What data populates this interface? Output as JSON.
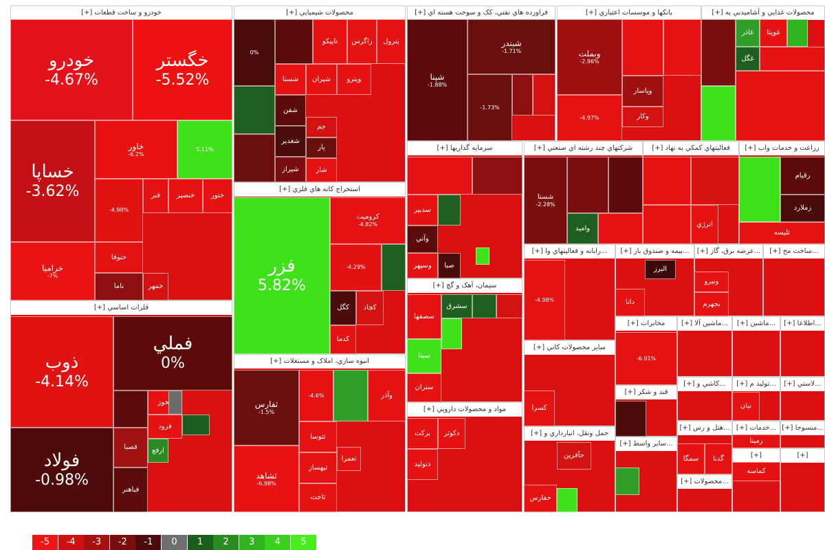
{
  "chart_data": {
    "type": "treemap",
    "sectors": [
      {
        "title": "خودرو و ساخت قطعات [+]",
        "tiles": [
          {
            "label": "خودرو",
            "value": -4.67,
            "value_label": "-4.67%",
            "color": "#e4121a"
          },
          {
            "label": "خگستر",
            "value": -5.52,
            "value_label": "-5.52%",
            "color": "#ee1111"
          },
          {
            "label": "خساپا",
            "value": -3.62,
            "value_label": "-3.62%",
            "color": "#c40f14"
          },
          {
            "label": "خاور",
            "value": -6.2,
            "value_label": "-6.2%",
            "color": "#e81212"
          },
          {
            "label": null,
            "value": 5.11,
            "value_label": "5.11%",
            "color": "#3fe21a"
          },
          {
            "label": null,
            "value": -4.98,
            "value_label": "-4.98%",
            "color": "#e01212"
          },
          {
            "label": "فنر",
            "value": -5,
            "color": "#e41212"
          },
          {
            "label": "خنصير",
            "value": -5,
            "color": "#e41212"
          },
          {
            "label": "ختور",
            "value": -5,
            "color": "#e41212"
          },
          {
            "label": "خراميا",
            "value": -7,
            "value_label": "-7%",
            "color": "#ea1212"
          },
          {
            "label": "خنوفا",
            "value": -5,
            "color": "#e41212"
          },
          {
            "label": "ناما",
            "value": -2,
            "color": "#8d0f0f"
          },
          {
            "label": "خمهر",
            "value": -4,
            "color": "#d41212"
          }
        ]
      },
      {
        "title": "فلزات اساسي [+]",
        "tiles": [
          {
            "label": "ذوب",
            "value": -4.14,
            "value_label": "-4.14%",
            "color": "#e01212"
          },
          {
            "label": "فملي",
            "value": 0,
            "value_label": "0%",
            "color": "#5c0b0b"
          },
          {
            "label": "فولاد",
            "value": -0.98,
            "value_label": "-0.98%",
            "color": "#4f0a0a"
          },
          {
            "label": null,
            "value": -1,
            "color": "#5c0b0b"
          },
          {
            "label": "فصبا",
            "value": -3,
            "color": "#a11212"
          },
          {
            "label": "فباهنر",
            "value": -1,
            "color": "#5c0b0b"
          },
          {
            "label": "فخوز",
            "value": -5,
            "color": "#e41212"
          },
          {
            "label": "فرود",
            "value": -5,
            "color": "#e41212"
          },
          {
            "label": "ارفع",
            "value": 2,
            "color": "#2b8a23"
          },
          {
            "label": null,
            "value": 0,
            "color": "#6b6b6b"
          },
          {
            "label": null,
            "value": 1,
            "color": "#1d5c1d"
          }
        ]
      },
      {
        "title": "محصولات شيميايي [+]",
        "tiles": [
          {
            "label": null,
            "value": 0,
            "value_label": "0%",
            "color": "#4a0b0b"
          },
          {
            "label": null,
            "value": -1,
            "color": "#5c0b0b"
          },
          {
            "label": "تاپيکو",
            "value": -5,
            "color": "#e41212"
          },
          {
            "label": "زاگرس",
            "value": -5,
            "color": "#e41212"
          },
          {
            "label": "پترول",
            "value": -5,
            "color": "#e41212"
          },
          {
            "label": null,
            "value": 1,
            "color": "#1f5e1f"
          },
          {
            "label": null,
            "value": -1.5,
            "color": "#6b0e0e"
          },
          {
            "label": "شسنا",
            "value": -5,
            "color": "#e41212"
          },
          {
            "label": "شيران",
            "value": -5,
            "color": "#e41212"
          },
          {
            "label": "وپترو",
            "value": -5,
            "color": "#e41212"
          },
          {
            "label": "شفن",
            "value": -1,
            "color": "#5c0b0b"
          },
          {
            "label": "شغدير",
            "value": -1,
            "color": "#4a0b0b"
          },
          {
            "label": "شيراز",
            "value": -2,
            "color": "#7a0e0e"
          },
          {
            "label": "جم",
            "value": -4,
            "color": "#d41212"
          },
          {
            "label": "پار",
            "value": -2,
            "color": "#6b0e0e"
          },
          {
            "label": "شار",
            "value": -5,
            "color": "#e41212"
          }
        ]
      },
      {
        "title": "استخراج کانه هاي فلزي [+]",
        "tiles": [
          {
            "label": "فزر",
            "value": 5.82,
            "value_label": "5.82%",
            "color": "#3fe21a"
          },
          {
            "label": "کروميت",
            "value": -4.82,
            "value_label": "-4.82%",
            "color": "#e41212"
          },
          {
            "label": null,
            "value": -4.29,
            "value_label": "-4.29%",
            "color": "#e01212"
          },
          {
            "label": null,
            "value": 1,
            "color": "#1f5e1f"
          },
          {
            "label": "کگل",
            "value": -1,
            "color": "#4a0b0b"
          },
          {
            "label": "کچاد",
            "value": -4,
            "color": "#d41212"
          },
          {
            "label": "کدما",
            "value": -5,
            "color": "#e41212"
          }
        ]
      },
      {
        "title": "انبوه سازي، املاک و مستغلات [+]",
        "tiles": [
          {
            "label": "ثفارس",
            "value": -1.5,
            "value_label": "-1.5%",
            "color": "#6b0e0e"
          },
          {
            "label": "ثشاهد",
            "value": -6.98,
            "value_label": "-6.98%",
            "color": "#e81212"
          },
          {
            "label": null,
            "value": -4.6,
            "value_label": "-4.6%",
            "color": "#e41212"
          },
          {
            "label": null,
            "value": 2,
            "color": "#2e9e26"
          },
          {
            "label": "وآذر",
            "value": -5,
            "color": "#e41212"
          },
          {
            "label": "ثتوسا",
            "value": -5,
            "color": "#e41212"
          },
          {
            "label": "ثبهساز",
            "value": -5,
            "color": "#e41212"
          },
          {
            "label": "ثاخت",
            "value": -5,
            "color": "#e41212"
          },
          {
            "label": "تعمرا",
            "value": -5,
            "color": "#e41212"
          }
        ]
      },
      {
        "title": "فراورده هاي نفتي، کک و سوخت هسته اي [+]",
        "tiles": [
          {
            "label": "شپنا",
            "value": -1.88,
            "value_label": "-1.88%",
            "color": "#5c0b0b"
          },
          {
            "label": "شبندر",
            "value": -1.71,
            "value_label": "-1.71%",
            "color": "#6b0e0e"
          },
          {
            "label": null,
            "value": -1.73,
            "value_label": "-1.73%",
            "color": "#6b0e0e"
          },
          {
            "label": null,
            "value": -3,
            "color": "#8d0f0f"
          },
          {
            "label": null,
            "value": -4,
            "color": "#d41212"
          }
        ]
      },
      {
        "title": "بانکها و موسسات اعتباري [+]",
        "tiles": [
          {
            "label": "وبملت",
            "value": -2.96,
            "value_label": "-2.96%",
            "color": "#9e1010"
          },
          {
            "label": null,
            "value": -4.97,
            "value_label": "-4.97%",
            "color": "#e41212"
          },
          {
            "label": null,
            "value": -5,
            "color": "#e41212"
          },
          {
            "label": null,
            "value": -5,
            "color": "#e41212"
          },
          {
            "label": "وپاسار",
            "value": -3,
            "color": "#9e1010"
          },
          {
            "label": "وکار",
            "value": -4,
            "color": "#d41212"
          }
        ]
      },
      {
        "title": "محصولات غذايي و آشاميدني به [+]",
        "tiles": [
          {
            "label": null,
            "value": -1,
            "color": "#7a0e0e"
          },
          {
            "label": null,
            "value": 4,
            "color": "#3fe21a"
          },
          {
            "label": "غاذر",
            "value": 2,
            "color": "#2e9e26"
          },
          {
            "label": "غويتا",
            "value": -5,
            "color": "#e41212"
          },
          {
            "label": null,
            "value": 3,
            "color": "#31b21f"
          },
          {
            "label": "غگل",
            "value": 1,
            "color": "#1f5e1f"
          },
          {
            "label": null,
            "value": -5,
            "color": "#e41212"
          },
          {
            "label": null,
            "value": -5,
            "color": "#e41212"
          }
        ]
      },
      {
        "title": "سرمايه گذاريها [+]",
        "tiles": [
          {
            "label": null,
            "value": -5,
            "color": "#e41212"
          },
          {
            "label": null,
            "value": -3,
            "color": "#8d0f0f"
          },
          {
            "label": "سدبير",
            "value": -5,
            "color": "#e41212"
          },
          {
            "label": null,
            "value": 1,
            "color": "#1f5e1f"
          },
          {
            "label": "وآتي",
            "value": -1,
            "color": "#5c0b0b"
          },
          {
            "label": "وسپهر",
            "value": -5,
            "color": "#e41212"
          },
          {
            "label": "صبا",
            "value": -1,
            "color": "#4a0b0b"
          },
          {
            "label": null,
            "value": 3,
            "color": "#3fe21a"
          }
        ]
      },
      {
        "title": "شرکتهاي چند رشته اي صنعتي [+]",
        "tiles": [
          {
            "label": "شستا",
            "value": -2.28,
            "value_label": "-2.28%",
            "color": "#7a0e0e"
          },
          {
            "label": null,
            "value": -2,
            "color": "#7a0e0e"
          },
          {
            "label": null,
            "value": -1,
            "color": "#5c0b0b"
          },
          {
            "label": "وامید",
            "value": 1,
            "color": "#1f5e1f"
          },
          {
            "label": null,
            "value": -5,
            "color": "#e41212"
          }
        ]
      },
      {
        "title": "فعاليتهاي کمکي به نهاد [+]",
        "tiles": [
          {
            "label": null,
            "value": -5,
            "color": "#e41212"
          },
          {
            "label": null,
            "value": -4,
            "color": "#d41212"
          },
          {
            "label": "انرژي",
            "value": -5,
            "color": "#e41212"
          },
          {
            "label": null,
            "value": -5,
            "color": "#e41212"
          }
        ]
      },
      {
        "title": "زراعت و خدمات واب [+]",
        "tiles": [
          {
            "label": null,
            "value": 4,
            "color": "#3fe21a"
          },
          {
            "label": "رقيام",
            "value": -1,
            "color": "#5c0b0b"
          },
          {
            "label": "زملارد",
            "value": -1,
            "color": "#4a0b0b"
          },
          {
            "label": "تليسه",
            "value": -5,
            "color": "#e41212"
          }
        ]
      },
      {
        "title": "سيمان، آهک و گچ [+]",
        "tiles": [
          {
            "label": "سصفها",
            "value": -5,
            "color": "#e41212"
          },
          {
            "label": "سشرق",
            "value": 1,
            "color": "#1f5e1f"
          },
          {
            "label": null,
            "value": 1,
            "color": "#1f5e1f"
          },
          {
            "label": null,
            "value": -4,
            "color": "#d41212"
          },
          {
            "label": "سيتا",
            "value": 4,
            "color": "#3fe21a"
          },
          {
            "label": "ستران",
            "value": -5,
            "color": "#e41212"
          },
          {
            "label": null,
            "value": 3,
            "color": "#3fe21a"
          }
        ]
      },
      {
        "title": "مواد و محصولات دارويي [+]",
        "tiles": [
          {
            "label": "برکت",
            "value": -5,
            "color": "#e41212"
          },
          {
            "label": "دکوثر",
            "value": -5,
            "color": "#e41212"
          },
          {
            "label": "دتوليد",
            "value": -5,
            "color": "#e41212"
          }
        ]
      },
      {
        "title": "ساير محصولات کاني [+]",
        "tiles": [
          {
            "label": "کسرا",
            "value": -5,
            "color": "#e41212"
          }
        ]
      },
      {
        "title": "حمل ونقل، انبارداري و [+]",
        "tiles": [
          {
            "label": "حآفرين",
            "value": -4,
            "color": "#d41212"
          },
          {
            "label": "حفارس",
            "value": -5,
            "color": "#e41212"
          },
          {
            "label": null,
            "value": 3,
            "color": "#3fe21a"
          }
        ]
      },
      {
        "title": "...رايانه و فعاليتهاي وا [+]",
        "tiles": [
          {
            "label": null,
            "value": -4.98,
            "value_label": "-4.98%",
            "color": "#e41212"
          }
        ]
      },
      {
        "title": "...بيمه و صندوق باز [+]",
        "tiles": [
          {
            "label": "البرز",
            "value": -1,
            "color": "#3a0a0a"
          },
          {
            "label": "دانا",
            "value": -5,
            "color": "#e41212"
          }
        ]
      },
      {
        "title": "مخابرات [+]",
        "tiles": [
          {
            "label": null,
            "value": -6.91,
            "value_label": "-6.91%",
            "color": "#e41212"
          }
        ]
      },
      {
        "title": "قند و شکر [+]",
        "tiles": [
          {
            "label": null,
            "value": -1,
            "color": "#4a0b0b"
          }
        ]
      },
      {
        "title": "...ساير واسط [+]",
        "tiles": [
          {
            "label": null,
            "value": 2,
            "color": "#2e9e26"
          }
        ]
      },
      {
        "title": "...عرضه برق، گاز [+]",
        "tiles": [
          {
            "label": "ونيرو",
            "value": -5,
            "color": "#e41212"
          },
          {
            "label": "بجهرم",
            "value": -5,
            "color": "#e41212"
          }
        ]
      },
      {
        "title": "...ساخت مح [+]",
        "tiles": []
      },
      {
        "title": "...ماشين آلا [+]",
        "tiles": []
      },
      {
        "title": "...ماشين [+]",
        "tiles": []
      },
      {
        "title": "...اطلاعا [+]",
        "tiles": []
      },
      {
        "title": "...کاشي و [+]",
        "tiles": []
      },
      {
        "title": "...توليد م [+]",
        "tiles": [
          {
            "label": "نيان",
            "value": -5,
            "color": "#e41212"
          }
        ]
      },
      {
        "title": "...لاستي [+]",
        "tiles": []
      },
      {
        "title": "...هتل و رس [+]",
        "tiles": [
          {
            "label": "سمگا",
            "value": -5,
            "color": "#e41212"
          },
          {
            "label": "گدنا",
            "value": -5,
            "color": "#e41212"
          }
        ]
      },
      {
        "title": "...خدمات [+]",
        "tiles": [
          {
            "label": "رمپنا",
            "value": -5,
            "color": "#e41212"
          }
        ]
      },
      {
        "title": "...منسوجا [+]",
        "tiles": []
      },
      {
        "title": "...محصولات [+]",
        "tiles": []
      },
      {
        "title": "[+]",
        "tiles": [
          {
            "label": "کماسه",
            "value": -5,
            "color": "#e41212"
          }
        ]
      },
      {
        "title": "[+]",
        "tiles": []
      }
    ],
    "legend": {
      "labels": [
        -5,
        -4,
        -3,
        -2,
        -1,
        0,
        1,
        2,
        3,
        4,
        5
      ],
      "colors": [
        "#f21414",
        "#d01010",
        "#a51010",
        "#7a0e0e",
        "#4e0b0b",
        "#6e6e6e",
        "#1c5e1c",
        "#2b8a22",
        "#31b21f",
        "#3bd01d",
        "#46ef1c"
      ]
    }
  }
}
